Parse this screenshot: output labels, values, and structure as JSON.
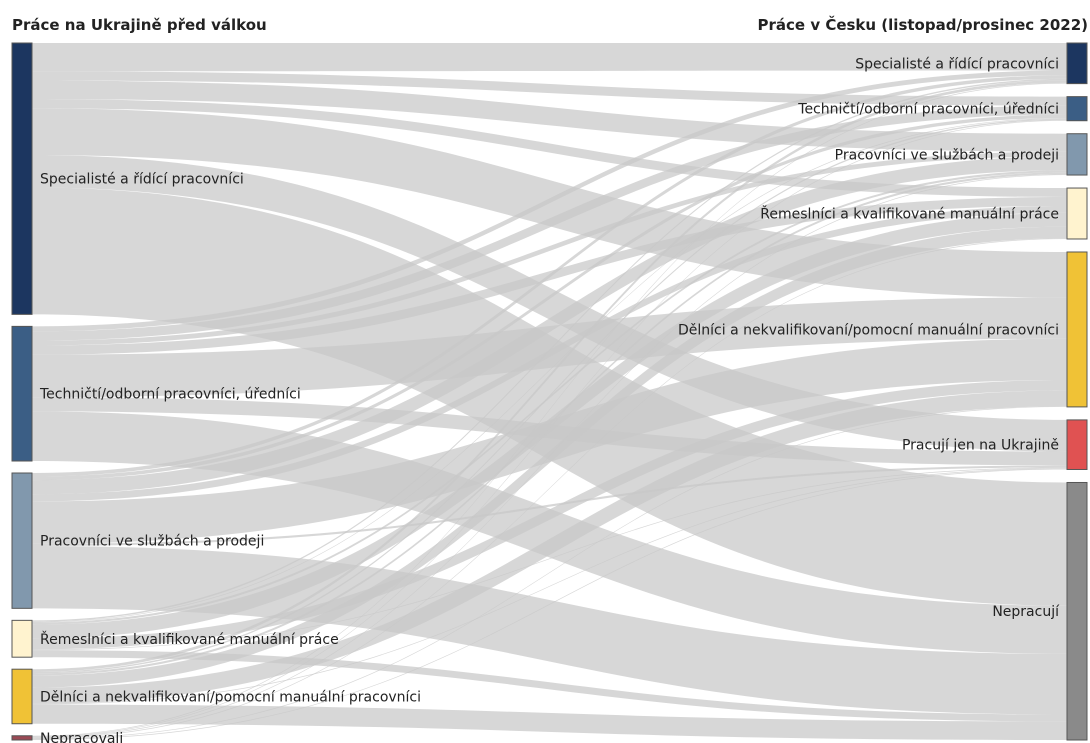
{
  "titles": {
    "left": "Práce na Ukrajině před válkou",
    "right": "Práce v Česku (listopad/prosinec 2022)"
  },
  "chart_data": {
    "type": "sankey",
    "unit": "share of respondents (%)",
    "sources": [
      {
        "name": "Specialisté a řídící pracovníci",
        "color": "#1c3660",
        "value": 38.3
      },
      {
        "name": "Techničtí/odborní pracovníci, úředníci",
        "color": "#3b5e85",
        "value": 19.0
      },
      {
        "name": "Pracovníci ve službách a prodeji",
        "color": "#8198ad",
        "value": 19.1
      },
      {
        "name": "Řemeslníci a kvalifikované manuální práce",
        "color": "#fff3cf",
        "value": 5.2
      },
      {
        "name": "Dělníci a nekvalifikovaní/pomocní manuální pracovníci",
        "color": "#f0c236",
        "value": 7.7
      },
      {
        "name": "Nepracovali",
        "color": "#9a4a55",
        "value": 0.6
      }
    ],
    "targets": [
      {
        "name": "Specialisté a řídící pracovníci",
        "color": "#1c3660",
        "value": 5.9
      },
      {
        "name": "Techničtí/odborní pracovníci, úředníci",
        "color": "#3b5e85",
        "value": 3.5
      },
      {
        "name": "Pracovníci ve službách a prodeji",
        "color": "#8198ad",
        "value": 6.0
      },
      {
        "name": "Řemeslníci a kvalifikované manuální práce",
        "color": "#fff3cf",
        "value": 7.4
      },
      {
        "name": "Dělníci a nekvalifikovaní/pomocní manuální pracovníci",
        "color": "#f0c236",
        "value": 22.5
      },
      {
        "name": "Pracují jen na Ukrajině",
        "color": "#e05252",
        "value": 7.2
      },
      {
        "name": "Nepracují",
        "color": "#8a8a8a",
        "value": 37.4
      }
    ],
    "flows": [
      [
        4.0,
        1.3,
        2.6,
        1.3,
        6.6,
        4.6,
        17.9
      ],
      [
        0.7,
        1.3,
        0.7,
        1.3,
        6.0,
        2.0,
        7.0
      ],
      [
        0.5,
        0.5,
        2.0,
        1.0,
        6.0,
        0.3,
        8.8
      ],
      [
        0.2,
        0.1,
        0.3,
        2.0,
        1.5,
        0.1,
        1.0
      ],
      [
        0.4,
        0.2,
        0.3,
        1.7,
        2.3,
        0.1,
        2.7
      ],
      [
        0.1,
        0.1,
        0.1,
        0.1,
        0.1,
        0.1,
        0.0
      ]
    ],
    "link_color": "#c8c8c8"
  }
}
